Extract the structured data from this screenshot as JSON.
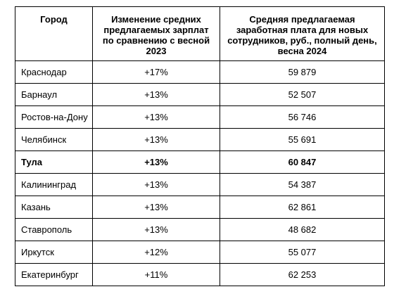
{
  "table": {
    "headers": {
      "city": "Город",
      "change": "Изменение средних предлагаемых зарплат по сравнению с весной 2023",
      "salary": "Средняя предлагаемая заработная плата для новых сотрудников, руб., полный день, весна 2024"
    },
    "rows": [
      {
        "city": "Краснодар",
        "change": "+17%",
        "salary": "59 879"
      },
      {
        "city": "Барнаул",
        "change": "+13%",
        "salary": "52 507"
      },
      {
        "city": "Ростов-на-Дону",
        "change": "+13%",
        "salary": "56 746"
      },
      {
        "city": "Челябинск",
        "change": "+13%",
        "salary": "55 691"
      },
      {
        "city": "Тула",
        "change": "+13%",
        "salary": "60 847"
      },
      {
        "city": "Калининград",
        "change": "+13%",
        "salary": "54 387"
      },
      {
        "city": "Казань",
        "change": "+13%",
        "salary": "62 861"
      },
      {
        "city": "Ставрополь",
        "change": "+13%",
        "salary": "48 682"
      },
      {
        "city": "Иркутск",
        "change": "+12%",
        "salary": "55 077"
      },
      {
        "city": "Екатеринбург",
        "change": "+11%",
        "salary": "62 253"
      }
    ]
  }
}
